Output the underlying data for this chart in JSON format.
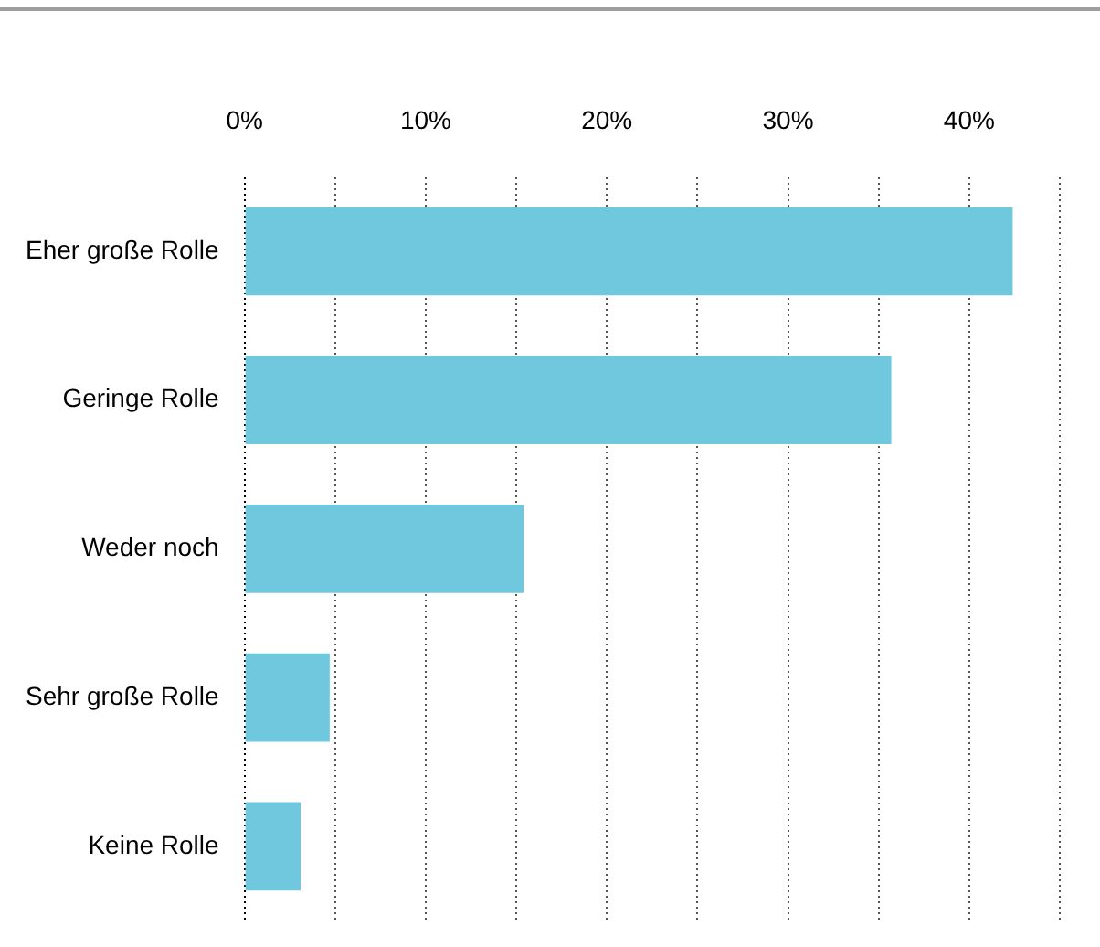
{
  "chart_data": {
    "type": "bar",
    "orientation": "horizontal",
    "categories": [
      "Eher große Rolle",
      "Geringe Rolle",
      "Weder noch",
      "Sehr große Rolle",
      "Keine Rolle"
    ],
    "values": [
      42.4,
      35.7,
      15.4,
      4.7,
      3.1
    ],
    "color": "#70c8de",
    "xlim": [
      0,
      45
    ],
    "xticks": [
      {
        "value": 0,
        "label": "0%"
      },
      {
        "value": 5,
        "label": null
      },
      {
        "value": 10,
        "label": "10%"
      },
      {
        "value": 15,
        "label": null
      },
      {
        "value": 20,
        "label": "20%"
      },
      {
        "value": 25,
        "label": null
      },
      {
        "value": 30,
        "label": "30%"
      },
      {
        "value": 35,
        "label": null
      },
      {
        "value": 40,
        "label": "40%"
      },
      {
        "value": 45,
        "label": null
      }
    ],
    "grid": "x",
    "legend": false
  }
}
